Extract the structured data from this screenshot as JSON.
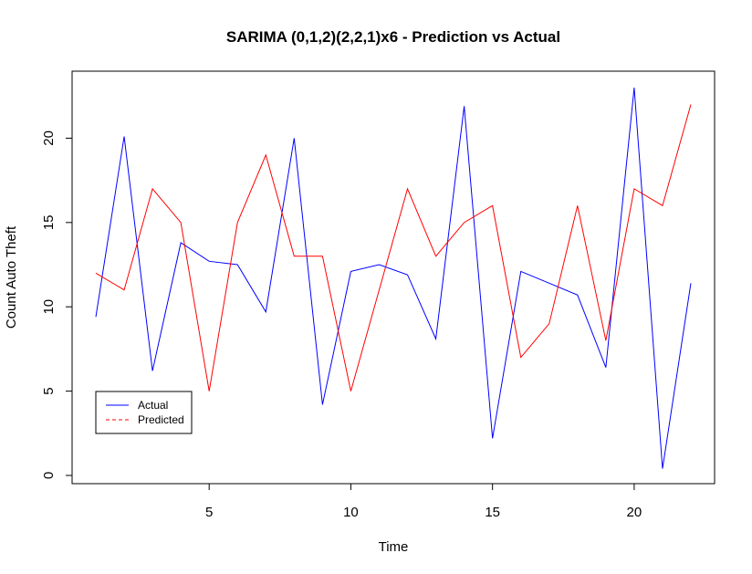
{
  "chart_data": {
    "type": "line",
    "title": "SARIMA (0,1,2)(2,2,1)x6 - Prediction vs Actual",
    "xlabel": "Time",
    "ylabel": "Count Auto Theft",
    "xlim": [
      1,
      22
    ],
    "ylim": [
      0,
      23
    ],
    "x_ticks": [
      5,
      10,
      15,
      20
    ],
    "y_ticks": [
      0,
      5,
      10,
      15,
      20
    ],
    "grid": false,
    "legend": {
      "position": "bottom-left"
    },
    "x": [
      1,
      2,
      3,
      4,
      5,
      6,
      7,
      8,
      9,
      10,
      11,
      12,
      13,
      14,
      15,
      16,
      17,
      18,
      19,
      20,
      21,
      22
    ],
    "series": [
      {
        "name": "Actual",
        "color": "#0000ff",
        "linestyle": "solid",
        "values": [
          9.4,
          20.1,
          6.2,
          13.8,
          12.7,
          12.5,
          9.7,
          20.0,
          4.2,
          12.1,
          12.5,
          11.9,
          8.1,
          21.9,
          2.2,
          12.1,
          11.4,
          10.7,
          6.4,
          23.0,
          0.4,
          11.4
        ]
      },
      {
        "name": "Predicted",
        "color": "#ff0000",
        "linestyle": "dashed",
        "values": [
          12,
          11,
          17,
          15,
          5,
          15,
          19,
          13,
          13,
          5,
          11,
          17,
          13,
          15,
          16,
          7,
          9,
          16,
          8,
          17,
          16,
          22
        ]
      }
    ]
  }
}
